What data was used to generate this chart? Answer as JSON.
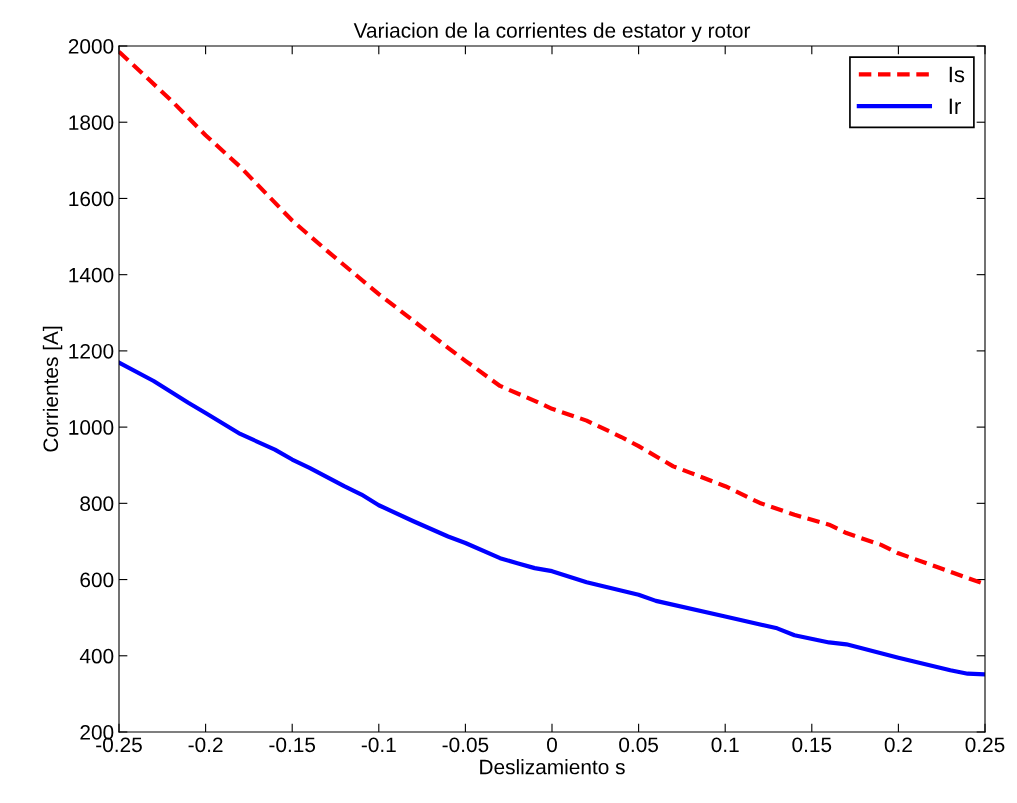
{
  "chart_data": {
    "type": "line",
    "title": "Variacion de la corrientes de estator y rotor",
    "xlabel": "Deslizamiento s",
    "ylabel": "Corrientes [A]",
    "xlim": [
      -0.25,
      0.25
    ],
    "xticks": [
      -0.25,
      -0.2,
      -0.15,
      -0.1,
      -0.05,
      0,
      0.05,
      0.1,
      0.15,
      0.2,
      0.25
    ],
    "ylim": [
      200,
      2000
    ],
    "yticks": [
      200,
      400,
      600,
      800,
      1000,
      1200,
      1400,
      1600,
      1800,
      2000
    ],
    "grid": false,
    "legend": "top right",
    "series": [
      {
        "name": "Is",
        "color": "#ff0000",
        "line_style": "dashed",
        "x": [
          -0.25,
          -0.22,
          -0.2,
          -0.18,
          -0.15,
          -0.13,
          -0.1,
          -0.08,
          -0.06,
          -0.05,
          -0.03,
          -0.01,
          0,
          0.02,
          0.04,
          0.05,
          0.07,
          0.08,
          0.1,
          0.12,
          0.14,
          0.16,
          0.17,
          0.19,
          0.2,
          0.25
        ],
        "values": [
          1985,
          1858,
          1766,
          1683,
          1542,
          1463,
          1349,
          1279,
          1208,
          1174,
          1108,
          1069,
          1048,
          1017,
          974,
          950,
          897,
          880,
          845,
          801,
          770,
          744,
          722,
          691,
          669,
          588
        ]
      },
      {
        "name": "Ir",
        "color": "#0000ff",
        "line_style": "solid",
        "x": [
          -0.25,
          -0.23,
          -0.21,
          -0.2,
          -0.18,
          -0.16,
          -0.15,
          -0.14,
          -0.12,
          -0.11,
          -0.1,
          -0.08,
          -0.06,
          -0.05,
          -0.03,
          -0.02,
          -0.01,
          0,
          0.02,
          0.05,
          0.06,
          0.1,
          0.13,
          0.14,
          0.16,
          0.17,
          0.2,
          0.23,
          0.24,
          0.25
        ],
        "values": [
          1169,
          1121,
          1064,
          1037,
          982,
          941,
          915,
          893,
          845,
          823,
          795,
          753,
          713,
          696,
          656,
          643,
          630,
          622,
          593,
          560,
          544,
          503,
          472,
          454,
          435,
          430,
          395,
          362,
          353,
          351
        ]
      }
    ]
  }
}
